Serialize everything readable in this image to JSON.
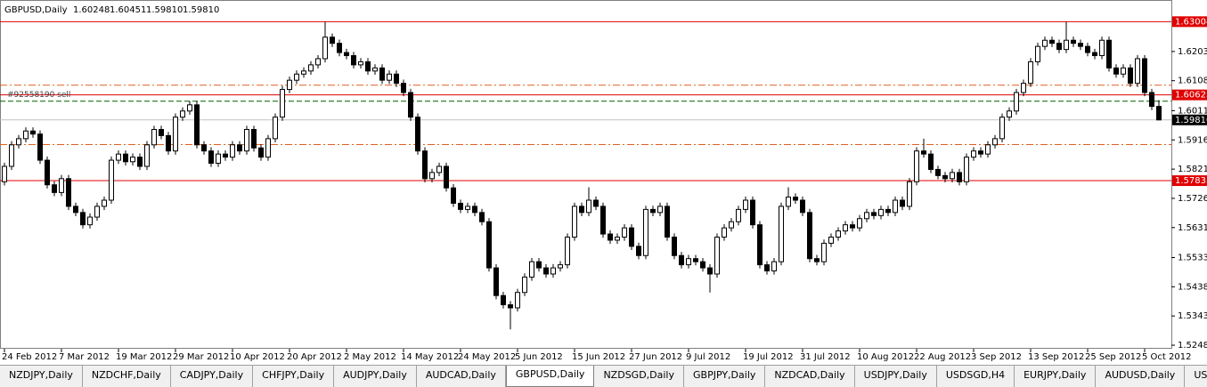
{
  "chart_data": {
    "type": "candlestick",
    "title": "GBPUSD,Daily",
    "ohlc_text": [
      "1.60248",
      "1.60451",
      "1.59810",
      "1.59810"
    ],
    "up_color": "#ffffff",
    "down_color": "#000000",
    "line_color": "#000000",
    "ylim": [
      1.5237,
      1.6313
    ],
    "yticks": [
      1.62035,
      1.61085,
      {
        "value": 1.6011,
        "label": "1.60110"
      },
      {
        "value": 1.5916,
        "label": "1.59160"
      },
      {
        "value": 1.5821,
        "label": "1.58210"
      },
      {
        "value": 1.5726,
        "label": "1.57260"
      },
      {
        "value": 1.5631,
        "label": "1.56310"
      },
      1.55335,
      1.54385,
      1.53435,
      1.52485
    ],
    "levels": [
      {
        "value": 1.63004,
        "label": "1.63004",
        "color": "#e00000",
        "style": "solid"
      },
      {
        "value": 1.60623,
        "label": "1.60623",
        "color": "#e00000",
        "style": "solid"
      },
      {
        "value": 1.57835,
        "label": "1.57835",
        "color": "#e00000",
        "style": "solid"
      },
      {
        "value": 1.5981,
        "label": "1.59810",
        "color": "#000000",
        "style": "current"
      },
      {
        "value": 1.6094,
        "color": "#e06020",
        "style": "dashdot"
      },
      {
        "value": 1.5901,
        "color": "#e06020",
        "style": "dashdot"
      },
      {
        "value": 1.6042,
        "color": "#006400",
        "style": "dash",
        "text": "#92558190 sell"
      }
    ],
    "categories": [
      "24 Feb 2012",
      null,
      null,
      null,
      null,
      null,
      null,
      null,
      "7 Mar 2012",
      null,
      null,
      null,
      null,
      null,
      null,
      null,
      "19 Mar 2012",
      null,
      null,
      null,
      null,
      null,
      null,
      null,
      "29 Mar 2012",
      null,
      null,
      null,
      null,
      null,
      null,
      null,
      "10 Apr 2012",
      null,
      null,
      null,
      null,
      null,
      null,
      null,
      "20 Apr 2012",
      null,
      null,
      null,
      null,
      null,
      null,
      null,
      "2 May 2012",
      null,
      null,
      null,
      null,
      null,
      null,
      null,
      "14 May 2012",
      null,
      null,
      null,
      null,
      null,
      null,
      null,
      "24 May 2012",
      null,
      null,
      null,
      null,
      null,
      null,
      null,
      "5 Jun 2012",
      null,
      null,
      null,
      null,
      null,
      null,
      null,
      "15 Jun 2012",
      null,
      null,
      null,
      null,
      null,
      null,
      null,
      "27 Jun 2012",
      null,
      null,
      null,
      null,
      null,
      null,
      null,
      "9 Jul 2012",
      null,
      null,
      null,
      null,
      null,
      null,
      null,
      "19 Jul 2012",
      null,
      null,
      null,
      null,
      null,
      null,
      null,
      "31 Jul 2012",
      null,
      null,
      null,
      null,
      null,
      null,
      null,
      "10 Aug 2012",
      null,
      null,
      null,
      null,
      null,
      null,
      null,
      "22 Aug 2012",
      null,
      null,
      null,
      null,
      null,
      null,
      null,
      "3 Sep 2012",
      null,
      null,
      null,
      null,
      null,
      null,
      null,
      "13 Sep 2012",
      null,
      null,
      null,
      null,
      null,
      null,
      null,
      "25 Sep 2012",
      null,
      null,
      null,
      null,
      null,
      null,
      null,
      "5 Oct 2012",
      null,
      null
    ],
    "ohlc": [
      [
        1.578,
        1.5842,
        1.5768,
        1.583
      ],
      [
        1.583,
        1.5912,
        1.5818,
        1.59
      ],
      [
        1.59,
        1.5932,
        1.5888,
        1.592
      ],
      [
        1.592,
        1.5957,
        1.5908,
        1.5945
      ],
      [
        1.5945,
        1.5957,
        1.5923,
        1.5935
      ],
      [
        1.5935,
        1.5947,
        1.5838,
        1.585
      ],
      [
        1.585,
        1.5862,
        1.5758,
        1.577
      ],
      [
        1.577,
        1.5782,
        1.5733,
        1.5745
      ],
      [
        1.5745,
        1.5802,
        1.5733,
        1.579
      ],
      [
        1.579,
        1.5802,
        1.5688,
        1.57
      ],
      [
        1.57,
        1.5712,
        1.5668,
        1.568
      ],
      [
        1.568,
        1.5692,
        1.5628,
        1.564
      ],
      [
        1.564,
        1.5677,
        1.5628,
        1.5665
      ],
      [
        1.5665,
        1.5712,
        1.5653,
        1.57
      ],
      [
        1.57,
        1.5732,
        1.5688,
        1.572
      ],
      [
        1.572,
        1.5862,
        1.5708,
        1.585
      ],
      [
        1.585,
        1.5882,
        1.5838,
        1.587
      ],
      [
        1.587,
        1.5882,
        1.5833,
        1.5845
      ],
      [
        1.5845,
        1.5872,
        1.5833,
        1.586
      ],
      [
        1.586,
        1.5872,
        1.5818,
        1.583
      ],
      [
        1.583,
        1.5912,
        1.5818,
        1.59
      ],
      [
        1.59,
        1.5962,
        1.5888,
        1.595
      ],
      [
        1.595,
        1.5962,
        1.5918,
        1.593
      ],
      [
        1.593,
        1.5942,
        1.5868,
        1.588
      ],
      [
        1.588,
        1.6002,
        1.5868,
        1.599
      ],
      [
        1.599,
        1.6022,
        1.5978,
        1.601
      ],
      [
        1.601,
        1.6042,
        1.5998,
        1.603
      ],
      [
        1.603,
        1.6042,
        1.5888,
        1.59
      ],
      [
        1.59,
        1.5912,
        1.5868,
        1.588
      ],
      [
        1.588,
        1.5892,
        1.5828,
        1.584
      ],
      [
        1.584,
        1.5882,
        1.5828,
        1.587
      ],
      [
        1.587,
        1.5882,
        1.5848,
        1.586
      ],
      [
        1.586,
        1.5912,
        1.5848,
        1.59
      ],
      [
        1.59,
        1.5912,
        1.5868,
        1.588
      ],
      [
        1.588,
        1.5962,
        1.5868,
        1.595
      ],
      [
        1.595,
        1.5962,
        1.5878,
        1.589
      ],
      [
        1.589,
        1.5902,
        1.5848,
        1.586
      ],
      [
        1.586,
        1.5932,
        1.5848,
        1.592
      ],
      [
        1.592,
        1.6002,
        1.5908,
        1.599
      ],
      [
        1.599,
        1.6092,
        1.5978,
        1.608
      ],
      [
        1.608,
        1.6122,
        1.6068,
        1.611
      ],
      [
        1.611,
        1.6142,
        1.6098,
        1.613
      ],
      [
        1.613,
        1.6152,
        1.6118,
        1.614
      ],
      [
        1.614,
        1.6172,
        1.6128,
        1.616
      ],
      [
        1.616,
        1.6192,
        1.6148,
        1.618
      ],
      [
        1.618,
        1.63,
        1.6168,
        1.625
      ],
      [
        1.625,
        1.6262,
        1.6218,
        1.623
      ],
      [
        1.623,
        1.6242,
        1.6188,
        1.62
      ],
      [
        1.62,
        1.6212,
        1.6178,
        1.619
      ],
      [
        1.619,
        1.6202,
        1.6148,
        1.616
      ],
      [
        1.616,
        1.6182,
        1.6148,
        1.617
      ],
      [
        1.617,
        1.6182,
        1.6128,
        1.614
      ],
      [
        1.614,
        1.6162,
        1.6128,
        1.615
      ],
      [
        1.615,
        1.6162,
        1.6098,
        1.611
      ],
      [
        1.611,
        1.6142,
        1.6098,
        1.613
      ],
      [
        1.613,
        1.6142,
        1.6088,
        1.61
      ],
      [
        1.61,
        1.6112,
        1.6058,
        1.607
      ],
      [
        1.607,
        1.6082,
        1.5978,
        1.599
      ],
      [
        1.599,
        1.6002,
        1.5868,
        1.588
      ],
      [
        1.588,
        1.5892,
        1.5778,
        1.579
      ],
      [
        1.579,
        1.5822,
        1.5778,
        1.581
      ],
      [
        1.581,
        1.5842,
        1.5798,
        1.583
      ],
      [
        1.583,
        1.5842,
        1.5748,
        1.576
      ],
      [
        1.576,
        1.5772,
        1.5698,
        1.571
      ],
      [
        1.571,
        1.5722,
        1.5678,
        1.569
      ],
      [
        1.569,
        1.5712,
        1.5678,
        1.57
      ],
      [
        1.57,
        1.5712,
        1.5668,
        1.568
      ],
      [
        1.568,
        1.5692,
        1.5638,
        1.565
      ],
      [
        1.565,
        1.5662,
        1.5488,
        1.55
      ],
      [
        1.55,
        1.5512,
        1.5398,
        1.541
      ],
      [
        1.541,
        1.5422,
        1.5368,
        1.538
      ],
      [
        1.538,
        1.5392,
        1.53,
        1.537
      ],
      [
        1.537,
        1.5432,
        1.5358,
        1.542
      ],
      [
        1.542,
        1.5482,
        1.5408,
        1.547
      ],
      [
        1.547,
        1.5532,
        1.5458,
        1.552
      ],
      [
        1.552,
        1.5532,
        1.5488,
        1.55
      ],
      [
        1.55,
        1.5512,
        1.5468,
        1.548
      ],
      [
        1.548,
        1.5512,
        1.5468,
        1.55
      ],
      [
        1.55,
        1.5522,
        1.5488,
        1.551
      ],
      [
        1.551,
        1.5612,
        1.5498,
        1.56
      ],
      [
        1.56,
        1.5712,
        1.5588,
        1.57
      ],
      [
        1.57,
        1.5712,
        1.5668,
        1.568
      ],
      [
        1.568,
        1.5762,
        1.5668,
        1.572
      ],
      [
        1.572,
        1.5732,
        1.5688,
        1.57
      ],
      [
        1.57,
        1.5712,
        1.5598,
        1.561
      ],
      [
        1.561,
        1.5622,
        1.5578,
        1.559
      ],
      [
        1.559,
        1.5612,
        1.5578,
        1.56
      ],
      [
        1.56,
        1.5642,
        1.5588,
        1.563
      ],
      [
        1.563,
        1.5642,
        1.5558,
        1.557
      ],
      [
        1.557,
        1.5582,
        1.5528,
        1.554
      ],
      [
        1.554,
        1.5702,
        1.5528,
        1.569
      ],
      [
        1.569,
        1.5702,
        1.5668,
        1.568
      ],
      [
        1.568,
        1.5712,
        1.5668,
        1.57
      ],
      [
        1.57,
        1.5712,
        1.5588,
        1.56
      ],
      [
        1.56,
        1.5612,
        1.5528,
        1.554
      ],
      [
        1.554,
        1.5552,
        1.5498,
        1.551
      ],
      [
        1.551,
        1.5542,
        1.5498,
        1.553
      ],
      [
        1.553,
        1.5542,
        1.5508,
        1.552
      ],
      [
        1.552,
        1.5532,
        1.5488,
        1.55
      ],
      [
        1.55,
        1.5512,
        1.542,
        1.548
      ],
      [
        1.548,
        1.5612,
        1.5468,
        1.56
      ],
      [
        1.56,
        1.5642,
        1.5588,
        1.563
      ],
      [
        1.563,
        1.5662,
        1.5618,
        1.565
      ],
      [
        1.565,
        1.5702,
        1.5638,
        1.569
      ],
      [
        1.569,
        1.5732,
        1.5678,
        1.572
      ],
      [
        1.572,
        1.5732,
        1.5628,
        1.564
      ],
      [
        1.564,
        1.5652,
        1.5498,
        1.551
      ],
      [
        1.551,
        1.5522,
        1.5478,
        1.549
      ],
      [
        1.549,
        1.5532,
        1.5478,
        1.552
      ],
      [
        1.552,
        1.5712,
        1.5508,
        1.57
      ],
      [
        1.57,
        1.5762,
        1.5688,
        1.573
      ],
      [
        1.573,
        1.5742,
        1.5708,
        1.572
      ],
      [
        1.572,
        1.5732,
        1.5668,
        1.568
      ],
      [
        1.568,
        1.5692,
        1.5518,
        1.553
      ],
      [
        1.553,
        1.5542,
        1.5508,
        1.552
      ],
      [
        1.552,
        1.5592,
        1.5508,
        1.558
      ],
      [
        1.558,
        1.5612,
        1.5568,
        1.56
      ],
      [
        1.56,
        1.5632,
        1.5588,
        1.562
      ],
      [
        1.562,
        1.5652,
        1.5608,
        1.564
      ],
      [
        1.564,
        1.5652,
        1.5618,
        1.563
      ],
      [
        1.563,
        1.5672,
        1.5618,
        1.566
      ],
      [
        1.566,
        1.5692,
        1.5648,
        1.568
      ],
      [
        1.568,
        1.5692,
        1.5658,
        1.567
      ],
      [
        1.567,
        1.5702,
        1.5658,
        1.569
      ],
      [
        1.569,
        1.5702,
        1.5668,
        1.568
      ],
      [
        1.568,
        1.5732,
        1.5668,
        1.572
      ],
      [
        1.572,
        1.5732,
        1.5688,
        1.57
      ],
      [
        1.57,
        1.5792,
        1.5688,
        1.578
      ],
      [
        1.578,
        1.5892,
        1.5768,
        1.588
      ],
      [
        1.588,
        1.592,
        1.5858,
        1.587
      ],
      [
        1.587,
        1.5882,
        1.5808,
        1.582
      ],
      [
        1.582,
        1.5832,
        1.5788,
        1.58
      ],
      [
        1.58,
        1.5812,
        1.5778,
        1.579
      ],
      [
        1.579,
        1.5822,
        1.5778,
        1.581
      ],
      [
        1.581,
        1.5822,
        1.5768,
        1.578
      ],
      [
        1.578,
        1.5872,
        1.5768,
        1.586
      ],
      [
        1.586,
        1.5892,
        1.5848,
        1.588
      ],
      [
        1.588,
        1.5892,
        1.5858,
        1.587
      ],
      [
        1.587,
        1.5912,
        1.5858,
        1.59
      ],
      [
        1.59,
        1.5932,
        1.5888,
        1.592
      ],
      [
        1.592,
        1.6002,
        1.5908,
        1.599
      ],
      [
        1.599,
        1.6022,
        1.5978,
        1.601
      ],
      [
        1.601,
        1.6082,
        1.5998,
        1.607
      ],
      [
        1.607,
        1.6112,
        1.6058,
        1.61
      ],
      [
        1.61,
        1.6182,
        1.6088,
        1.617
      ],
      [
        1.617,
        1.6232,
        1.6158,
        1.622
      ],
      [
        1.622,
        1.6252,
        1.6208,
        1.624
      ],
      [
        1.624,
        1.6252,
        1.6218,
        1.623
      ],
      [
        1.623,
        1.6242,
        1.6198,
        1.621
      ],
      [
        1.621,
        1.63,
        1.6198,
        1.624
      ],
      [
        1.624,
        1.6252,
        1.6218,
        1.623
      ],
      [
        1.623,
        1.6242,
        1.6208,
        1.622
      ],
      [
        1.622,
        1.6232,
        1.6188,
        1.62
      ],
      [
        1.62,
        1.6212,
        1.6178,
        1.619
      ],
      [
        1.619,
        1.6252,
        1.6178,
        1.624
      ],
      [
        1.624,
        1.6252,
        1.6138,
        1.615
      ],
      [
        1.615,
        1.6162,
        1.6118,
        1.613
      ],
      [
        1.613,
        1.6162,
        1.6118,
        1.615
      ],
      [
        1.615,
        1.6162,
        1.6088,
        1.61
      ],
      [
        1.61,
        1.6192,
        1.6088,
        1.618
      ],
      [
        1.618,
        1.6192,
        1.6058,
        1.607
      ],
      [
        1.607,
        1.6082,
        1.6013,
        1.6025
      ],
      [
        1.60248,
        1.60451,
        1.5981,
        1.5981
      ]
    ]
  },
  "tabs": [
    "NZDJPY,Daily",
    "NZDCHF,Daily",
    "CADJPY,Daily",
    "CHFJPY,Daily",
    "AUDJPY,Daily",
    "AUDCAD,Daily",
    "GBPUSD,Daily",
    "NZDSGD,Daily",
    "GBPJPY,Daily",
    "NZDCAD,Daily",
    "USDJPY,Daily",
    "USDSGD,H4",
    "EURJPY,Daily",
    "AUDUSD,Daily",
    "USDZAR,Weekly"
  ],
  "active_tab": "GBPUSD,Daily"
}
